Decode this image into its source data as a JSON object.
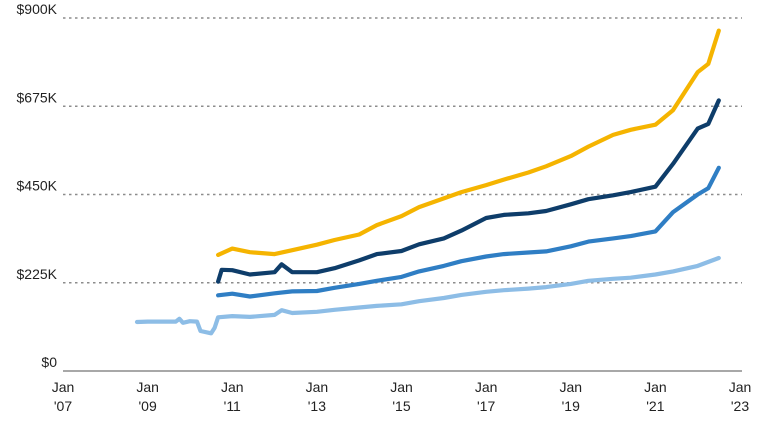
{
  "chart_data": {
    "type": "line",
    "title": "",
    "xlabel": "",
    "ylabel": "",
    "xlim": [
      "2007-01",
      "2023-01"
    ],
    "ylim": [
      0,
      900000
    ],
    "grid": "horizontal dotted",
    "y_ticks": [
      {
        "value": 0,
        "label": "$0"
      },
      {
        "value": 225000,
        "label": "$225K"
      },
      {
        "value": 450000,
        "label": "$450K"
      },
      {
        "value": 675000,
        "label": "$675K"
      },
      {
        "value": 900000,
        "label": "$900K"
      }
    ],
    "x_ticks": [
      {
        "date": "2007-01",
        "line1": "Jan",
        "line2": "'07"
      },
      {
        "date": "2009-01",
        "line1": "Jan",
        "line2": "'09"
      },
      {
        "date": "2011-01",
        "line1": "Jan",
        "line2": "'11"
      },
      {
        "date": "2013-01",
        "line1": "Jan",
        "line2": "'13"
      },
      {
        "date": "2015-01",
        "line1": "Jan",
        "line2": "'15"
      },
      {
        "date": "2017-01",
        "line1": "Jan",
        "line2": "'17"
      },
      {
        "date": "2019-01",
        "line1": "Jan",
        "line2": "'19"
      },
      {
        "date": "2021-01",
        "line1": "Jan",
        "line2": "'21"
      },
      {
        "date": "2023-01",
        "line1": "Jan",
        "line2": "'23"
      }
    ],
    "series": [
      {
        "color": "#f5b400",
        "points": [
          [
            "2010-09",
            296000
          ],
          [
            "2011-01",
            312000
          ],
          [
            "2011-06",
            303000
          ],
          [
            "2012-01",
            298000
          ],
          [
            "2012-06",
            308000
          ],
          [
            "2013-01",
            322000
          ],
          [
            "2013-06",
            334000
          ],
          [
            "2014-01",
            348000
          ],
          [
            "2014-06",
            372000
          ],
          [
            "2015-01",
            395000
          ],
          [
            "2015-06",
            418000
          ],
          [
            "2016-01",
            440000
          ],
          [
            "2016-06",
            456000
          ],
          [
            "2017-01",
            474000
          ],
          [
            "2017-06",
            488000
          ],
          [
            "2018-01",
            506000
          ],
          [
            "2018-06",
            522000
          ],
          [
            "2019-01",
            548000
          ],
          [
            "2019-06",
            572000
          ],
          [
            "2020-01",
            602000
          ],
          [
            "2020-06",
            615000
          ],
          [
            "2021-01",
            628000
          ],
          [
            "2021-06",
            665000
          ],
          [
            "2022-01",
            762000
          ],
          [
            "2022-04",
            783000
          ],
          [
            "2022-07",
            868000
          ]
        ]
      },
      {
        "color": "#0e3d6a",
        "points": [
          [
            "2010-09",
            228000
          ],
          [
            "2010-10",
            258000
          ],
          [
            "2011-01",
            257000
          ],
          [
            "2011-06",
            246000
          ],
          [
            "2012-01",
            252000
          ],
          [
            "2012-03",
            272000
          ],
          [
            "2012-06",
            252000
          ],
          [
            "2013-01",
            252000
          ],
          [
            "2013-06",
            262000
          ],
          [
            "2014-01",
            282000
          ],
          [
            "2014-06",
            298000
          ],
          [
            "2015-01",
            306000
          ],
          [
            "2015-06",
            323000
          ],
          [
            "2016-01",
            338000
          ],
          [
            "2016-06",
            358000
          ],
          [
            "2017-01",
            390000
          ],
          [
            "2017-06",
            398000
          ],
          [
            "2018-01",
            402000
          ],
          [
            "2018-06",
            408000
          ],
          [
            "2019-01",
            425000
          ],
          [
            "2019-06",
            438000
          ],
          [
            "2020-01",
            448000
          ],
          [
            "2020-06",
            456000
          ],
          [
            "2021-01",
            470000
          ],
          [
            "2021-06",
            528000
          ],
          [
            "2022-01",
            618000
          ],
          [
            "2022-04",
            630000
          ],
          [
            "2022-07",
            690000
          ]
        ]
      },
      {
        "color": "#2f7ec4",
        "points": [
          [
            "2010-09",
            193000
          ],
          [
            "2011-01",
            197000
          ],
          [
            "2011-06",
            190000
          ],
          [
            "2012-01",
            198000
          ],
          [
            "2012-06",
            203000
          ],
          [
            "2013-01",
            204000
          ],
          [
            "2013-06",
            212000
          ],
          [
            "2014-01",
            222000
          ],
          [
            "2014-06",
            230000
          ],
          [
            "2015-01",
            240000
          ],
          [
            "2015-06",
            254000
          ],
          [
            "2016-01",
            268000
          ],
          [
            "2016-06",
            280000
          ],
          [
            "2017-01",
            292000
          ],
          [
            "2017-06",
            298000
          ],
          [
            "2018-01",
            302000
          ],
          [
            "2018-06",
            305000
          ],
          [
            "2019-01",
            318000
          ],
          [
            "2019-06",
            330000
          ],
          [
            "2020-01",
            338000
          ],
          [
            "2020-06",
            344000
          ],
          [
            "2021-01",
            356000
          ],
          [
            "2021-06",
            405000
          ],
          [
            "2022-01",
            450000
          ],
          [
            "2022-04",
            466000
          ],
          [
            "2022-07",
            518000
          ]
        ]
      },
      {
        "color": "#8dbde6",
        "points": [
          [
            "2008-10",
            125000
          ],
          [
            "2009-01",
            126000
          ],
          [
            "2009-06",
            126000
          ],
          [
            "2009-09",
            126000
          ],
          [
            "2009-10",
            133000
          ],
          [
            "2009-11",
            123000
          ],
          [
            "2010-01",
            127000
          ],
          [
            "2010-03",
            126000
          ],
          [
            "2010-04",
            102000
          ],
          [
            "2010-07",
            96000
          ],
          [
            "2010-08",
            110000
          ],
          [
            "2010-09",
            137000
          ],
          [
            "2011-01",
            140000
          ],
          [
            "2011-06",
            138000
          ],
          [
            "2012-01",
            143000
          ],
          [
            "2012-03",
            155000
          ],
          [
            "2012-06",
            148000
          ],
          [
            "2013-01",
            151000
          ],
          [
            "2013-06",
            156000
          ],
          [
            "2014-01",
            162000
          ],
          [
            "2014-06",
            166000
          ],
          [
            "2015-01",
            170000
          ],
          [
            "2015-06",
            178000
          ],
          [
            "2016-01",
            186000
          ],
          [
            "2016-06",
            194000
          ],
          [
            "2017-01",
            202000
          ],
          [
            "2017-06",
            206000
          ],
          [
            "2018-01",
            210000
          ],
          [
            "2018-06",
            214000
          ],
          [
            "2019-01",
            222000
          ],
          [
            "2019-06",
            230000
          ],
          [
            "2020-01",
            235000
          ],
          [
            "2020-06",
            238000
          ],
          [
            "2021-01",
            246000
          ],
          [
            "2021-06",
            254000
          ],
          [
            "2022-01",
            268000
          ],
          [
            "2022-07",
            288000
          ]
        ]
      }
    ]
  }
}
